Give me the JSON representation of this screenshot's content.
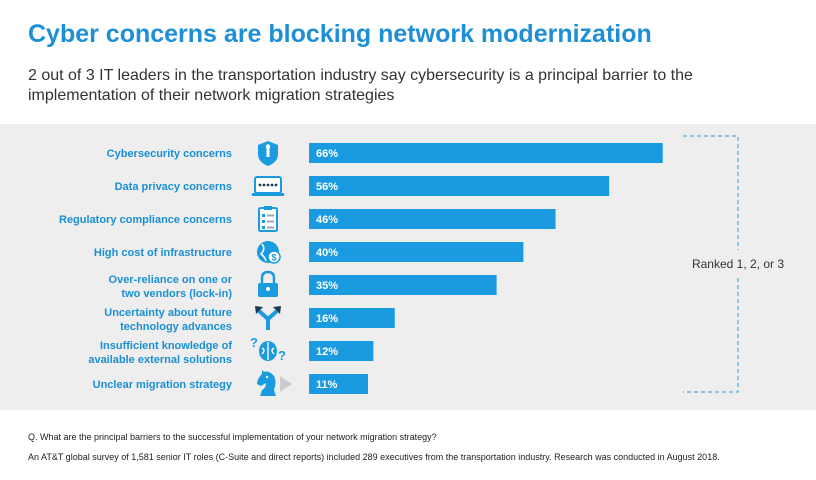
{
  "title": "Cyber concerns are blocking network modernization",
  "subtitle": "2 out of 3 IT leaders in the transportation industry say cybersecurity is a principal barrier to the implementation of their network migration strategies",
  "bracket_label": "Ranked 1, 2, or 3",
  "footer": {
    "question": "Q. What are the principal barriers to the successful implementation of your network migration strategy?",
    "note": "An AT&T global survey of 1,581 senior IT roles (C-Suite and direct reports) included 289 executives from the transportation industry. Research was conducted in August 2018."
  },
  "colors": {
    "title": "#1d8fd6",
    "bar": "#1a9be0",
    "label": "#1a90d4",
    "icon": "#1a9be0",
    "panel": "#eeeeee",
    "bracket": "#6ab7e6"
  },
  "chart_data": {
    "type": "bar",
    "orientation": "horizontal",
    "categories": [
      [
        "Cybersecurity concerns"
      ],
      [
        "Data privacy concerns"
      ],
      [
        "Regulatory compliance concerns"
      ],
      [
        "High cost of infrastructure"
      ],
      [
        "Over-reliance on one or",
        "two vendors (lock-in)"
      ],
      [
        "Uncertainty about future",
        "technology advances"
      ],
      [
        "Insufficient knowledge of",
        "available external solutions"
      ],
      [
        "Unclear migration strategy"
      ]
    ],
    "values": [
      66,
      56,
      46,
      40,
      35,
      16,
      12,
      11
    ],
    "value_labels": [
      "66%",
      "56%",
      "46%",
      "40%",
      "35%",
      "16%",
      "12%",
      "11%"
    ],
    "icons": [
      "shield-icon",
      "password-screen-icon",
      "checklist-icon",
      "globe-dollar-icon",
      "padlock-icon",
      "arrows-split-icon",
      "brain-question-icon",
      "chess-knight-icon"
    ],
    "ylim": [
      0,
      100
    ]
  }
}
